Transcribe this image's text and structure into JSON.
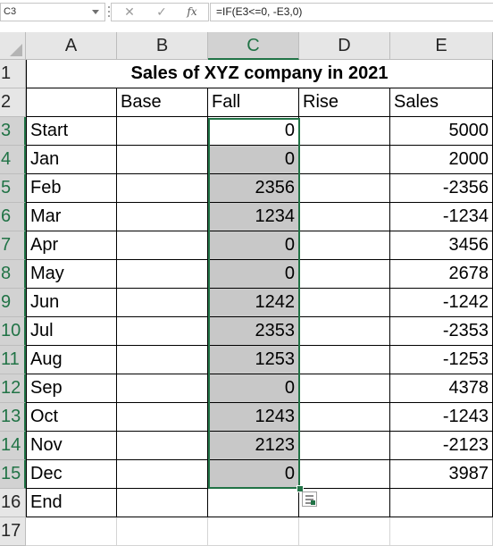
{
  "formula_bar": {
    "name_box": "C3",
    "cancel_glyph": "✕",
    "enter_glyph": "✓",
    "fx_label": "fx",
    "formula": "=IF(E3<=0, -E3,0)"
  },
  "columns": [
    "A",
    "B",
    "C",
    "D",
    "E"
  ],
  "selected_column": "C",
  "rows": [
    {
      "num": "1",
      "A": "",
      "B": "",
      "C": "",
      "D": "",
      "E": ""
    },
    {
      "num": "2",
      "A": "",
      "B": "Base",
      "C": "Fall",
      "D": "Rise",
      "E": "Sales"
    },
    {
      "num": "3",
      "A": "Start",
      "B": "",
      "C": "0",
      "D": "",
      "E": "5000"
    },
    {
      "num": "4",
      "A": "Jan",
      "B": "",
      "C": "0",
      "D": "",
      "E": "2000"
    },
    {
      "num": "5",
      "A": "Feb",
      "B": "",
      "C": "2356",
      "D": "",
      "E": "-2356"
    },
    {
      "num": "6",
      "A": "Mar",
      "B": "",
      "C": "1234",
      "D": "",
      "E": "-1234"
    },
    {
      "num": "7",
      "A": "Apr",
      "B": "",
      "C": "0",
      "D": "",
      "E": "3456"
    },
    {
      "num": "8",
      "A": "May",
      "B": "",
      "C": "0",
      "D": "",
      "E": "2678"
    },
    {
      "num": "9",
      "A": "Jun",
      "B": "",
      "C": "1242",
      "D": "",
      "E": "-1242"
    },
    {
      "num": "10",
      "A": "Jul",
      "B": "",
      "C": "2353",
      "D": "",
      "E": "-2353"
    },
    {
      "num": "11",
      "A": "Aug",
      "B": "",
      "C": "1253",
      "D": "",
      "E": "-1253"
    },
    {
      "num": "12",
      "A": "Sep",
      "B": "",
      "C": "0",
      "D": "",
      "E": "4378"
    },
    {
      "num": "13",
      "A": "Oct",
      "B": "",
      "C": "1243",
      "D": "",
      "E": "-1243"
    },
    {
      "num": "14",
      "A": "Nov",
      "B": "",
      "C": "2123",
      "D": "",
      "E": "-2123"
    },
    {
      "num": "15",
      "A": "Dec",
      "B": "",
      "C": "0",
      "D": "",
      "E": "3987"
    },
    {
      "num": "16",
      "A": "End",
      "B": "",
      "C": "",
      "D": "",
      "E": ""
    },
    {
      "num": "17",
      "A": "",
      "B": "",
      "C": "",
      "D": "",
      "E": ""
    }
  ],
  "title": "Sales of XYZ company in 2021",
  "colors": {
    "selection": "#217346",
    "grey_fill": "#c8c8c8",
    "header_bg": "#e6e6e6"
  },
  "icons": [
    "dropdown-arrow-icon",
    "cancel-icon",
    "enter-icon",
    "function-icon",
    "quick-analysis-icon"
  ]
}
